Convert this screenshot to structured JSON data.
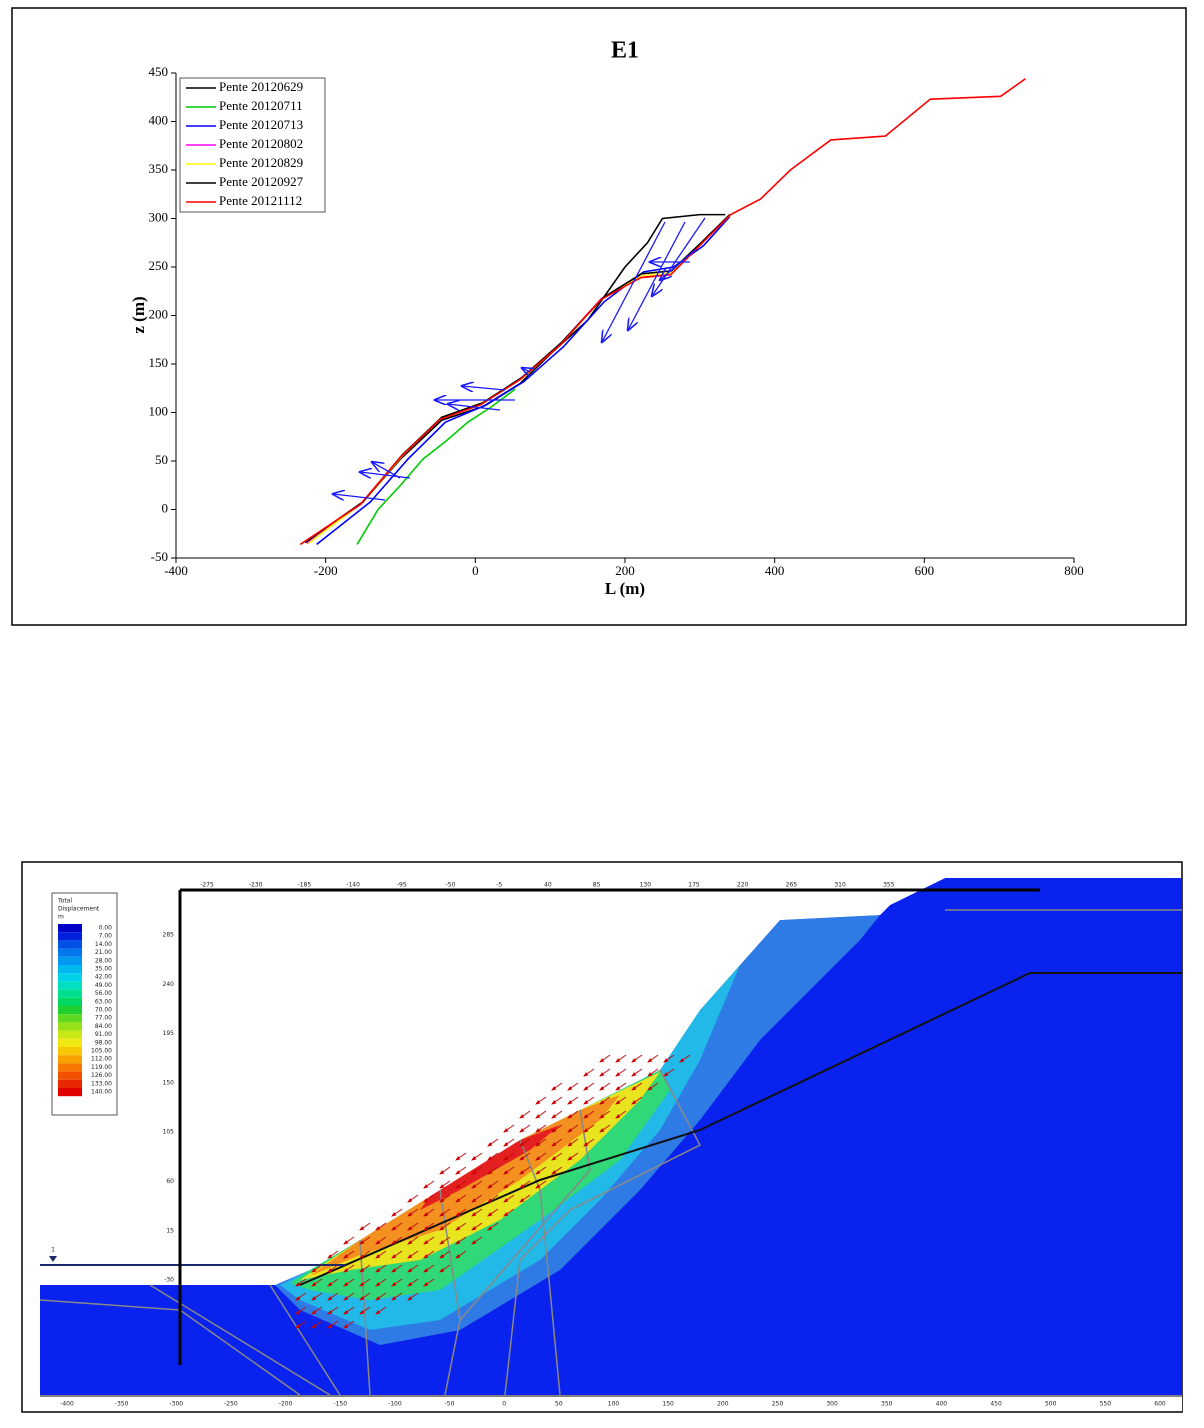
{
  "chart_data": {
    "type": "line",
    "title": "E1",
    "xlabel": "L (m)",
    "ylabel": "z (m)",
    "xlim": [
      -400,
      800
    ],
    "ylim": [
      -50,
      450
    ],
    "xticks": [
      -400,
      -200,
      0,
      200,
      400,
      600,
      800
    ],
    "yticks": [
      -50,
      0,
      50,
      100,
      150,
      200,
      250,
      300,
      350,
      400,
      450
    ],
    "legend": "upper left",
    "series": [
      {
        "name": "Pente 20120629",
        "color": "#000000",
        "x": [
          -226,
          -150,
          -100,
          -45,
          10,
          60,
          100,
          150,
          200,
          230,
          250,
          300,
          334
        ],
        "values": [
          -34,
          8,
          52,
          92,
          106,
          130,
          160,
          195,
          250,
          275,
          300,
          304,
          304
        ]
      },
      {
        "name": "Pente 20120711",
        "color": "#00cc00",
        "x": [
          -158,
          -130,
          -100,
          -70,
          -40,
          -10,
          20,
          53
        ],
        "values": [
          -36,
          0,
          25,
          52,
          70,
          90,
          105,
          124
        ]
      },
      {
        "name": "Pente 20120713",
        "color": "#0000ff",
        "x": [
          -212,
          -140,
          -90,
          -40,
          15,
          65,
          118,
          172,
          225,
          265,
          305,
          340
        ],
        "values": [
          -36,
          8,
          52,
          90,
          108,
          132,
          168,
          214,
          245,
          250,
          272,
          302
        ]
      },
      {
        "name": "Pente 20120802",
        "color": "#ff00ff",
        "x": [
          -225,
          -152,
          -99,
          -46,
          8,
          61,
          114,
          168,
          222,
          262,
          302,
          341
        ],
        "values": [
          -35,
          6,
          55,
          94,
          109,
          135,
          171,
          217,
          240,
          243,
          274,
          304
        ]
      },
      {
        "name": "Pente 20120829",
        "color": "#ffff00",
        "x": [
          -223,
          -151,
          -98,
          -45,
          9,
          62,
          115,
          169,
          223,
          263,
          303,
          341
        ],
        "values": [
          -35,
          7,
          55,
          95,
          110,
          135,
          171,
          217,
          241,
          244,
          275,
          304
        ]
      },
      {
        "name": "Pente 20120927",
        "color": "#000000",
        "x": [
          -228,
          -150,
          -98,
          -45,
          10,
          62,
          115,
          170,
          222,
          262,
          303,
          340
        ],
        "values": [
          -34,
          8,
          56,
          95,
          110,
          136,
          172,
          218,
          243,
          246,
          276,
          304
        ]
      },
      {
        "name": "Pente 20121112",
        "color": "#ff0000",
        "x": [
          -234,
          -154,
          -100,
          -47,
          7,
          60,
          114,
          167,
          221,
          261,
          301,
          341,
          381,
          421,
          475,
          548,
          608,
          702,
          735
        ],
        "values": [
          -36,
          5,
          54,
          93,
          108,
          134,
          170,
          216,
          239,
          242,
          273,
          304,
          320,
          350,
          381,
          385,
          423,
          426,
          444
        ]
      }
    ]
  },
  "simulation": {
    "legend_title": [
      "Total",
      "Displacement",
      "m"
    ],
    "legend_values": [
      "0.00",
      "7.00",
      "14.00",
      "21.00",
      "28.00",
      "35.00",
      "42.00",
      "49.00",
      "56.00",
      "63.00",
      "70.00",
      "77.00",
      "84.00",
      "91.00",
      "98.00",
      "105.00",
      "112.00",
      "119.00",
      "126.00",
      "133.00",
      "140.00"
    ],
    "legend_colors": [
      "#0000c8",
      "#0020e0",
      "#0050e8",
      "#0078ec",
      "#0098f0",
      "#00b8f0",
      "#00d0e8",
      "#00e0c0",
      "#00e090",
      "#00d860",
      "#20d030",
      "#60d820",
      "#98e018",
      "#c8e818",
      "#f0e810",
      "#f8c808",
      "#f8a000",
      "#f87800",
      "#f05000",
      "#e82800",
      "#e00000"
    ],
    "top_ticks": [
      "-275",
      "-230",
      "-185",
      "-140",
      "-95",
      "-50",
      "-5",
      "40",
      "85",
      "130",
      "175",
      "220",
      "265",
      "310",
      "355"
    ],
    "left_ticks": [
      "285",
      "240",
      "195",
      "150",
      "105",
      "60",
      "15",
      "-30"
    ],
    "bottom_ticks": [
      "-400",
      "-350",
      "-300",
      "-250",
      "-200",
      "-150",
      "-100",
      "-50",
      "0",
      "50",
      "100",
      "150",
      "200",
      "250",
      "300",
      "350",
      "400",
      "450",
      "500",
      "550",
      "600"
    ],
    "water_label": "1"
  }
}
